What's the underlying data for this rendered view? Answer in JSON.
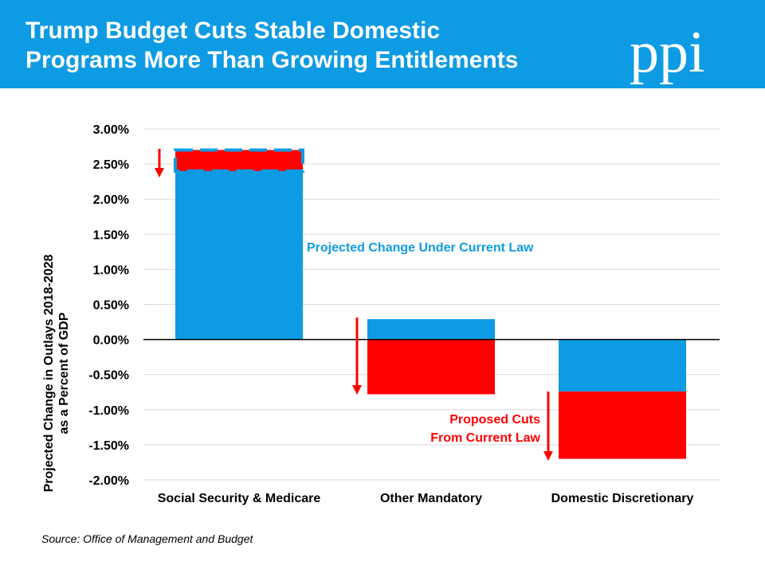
{
  "slide": {
    "title": "Trump Budget Cuts Stable Domestic\nPrograms More Than Growing Entitlements",
    "logo_text": "ppi",
    "source": "Source: Office of Management and Budget"
  },
  "colors": {
    "header_bg": "#0d9be3",
    "current_law": "#0d9be3",
    "proposed_cuts": "#ff0000"
  },
  "chart_data": {
    "type": "bar",
    "subtype": "stacked-floating",
    "ylabel_line1": "Projected Change in Outlays 2018-2028",
    "ylabel_line2": "as a Percent of GDP",
    "xlabel": "",
    "ylim": [
      -2.0,
      3.0
    ],
    "yticks": [
      3.0,
      2.5,
      2.0,
      1.5,
      1.0,
      0.5,
      0.0,
      -0.5,
      -1.0,
      -1.5,
      -2.0
    ],
    "ytick_labels": [
      "3.00%",
      "2.50%",
      "2.00%",
      "1.50%",
      "1.00%",
      "0.50%",
      "0.00%",
      "-0.50%",
      "-1.00%",
      "-1.50%",
      "-2.00%"
    ],
    "grid": true,
    "categories": [
      "Social Security & Medicare",
      "Other Mandatory",
      "Domestic Discretionary"
    ],
    "series": [
      {
        "name": "Projected Change Under Current Law",
        "ranges": [
          [
            0.0,
            2.7
          ],
          [
            0.0,
            0.29
          ],
          [
            -0.74,
            0.0
          ]
        ]
      },
      {
        "name": "Proposed Cuts From Current Law",
        "ranges": [
          [
            2.4,
            2.7
          ],
          [
            -0.78,
            0.0
          ],
          [
            -1.7,
            -0.74
          ]
        ]
      }
    ],
    "annotations": [
      {
        "text": "Projected Change Under Current Law",
        "color": "#0d9be3"
      },
      {
        "text": "Proposed Cuts",
        "color": "#ff0000"
      },
      {
        "text": "From Current Law",
        "color": "#ff0000"
      }
    ]
  }
}
